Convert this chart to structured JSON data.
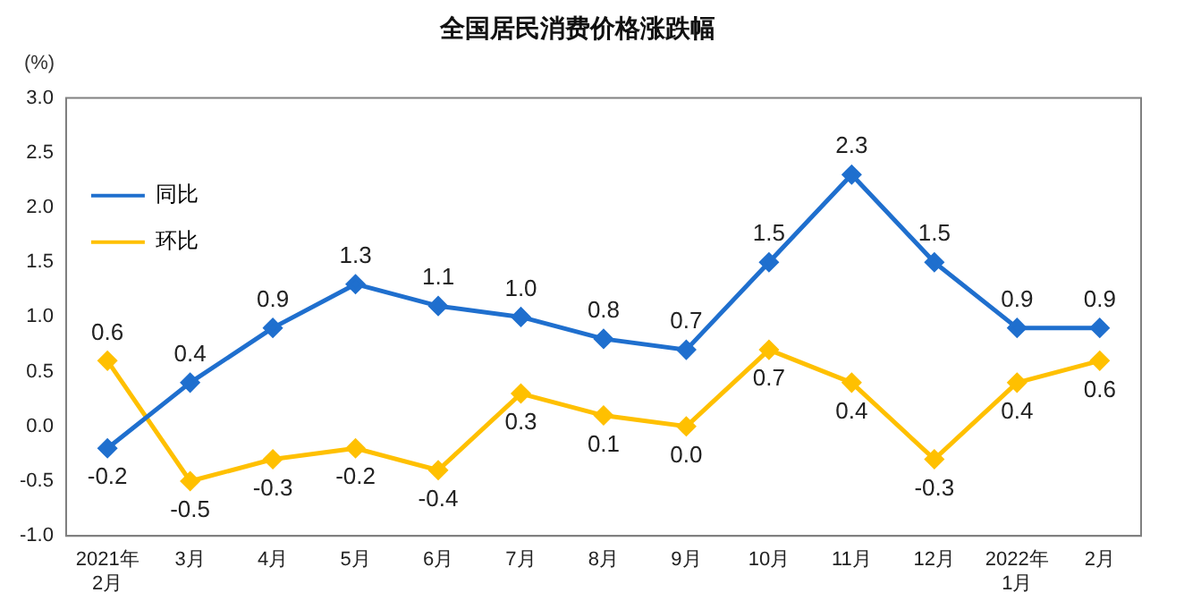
{
  "chart_data": {
    "type": "line",
    "title": "全国居民消费价格涨跌幅",
    "ylabel": "(%)",
    "categories": [
      "2021年\n2月",
      "3月",
      "4月",
      "5月",
      "6月",
      "7月",
      "8月",
      "9月",
      "10月",
      "11月",
      "12月",
      "2022年\n1月",
      "2月"
    ],
    "series": [
      {
        "name": "同比",
        "color": "#1f6fce",
        "values": [
          -0.2,
          0.4,
          0.9,
          1.3,
          1.1,
          1.0,
          0.8,
          0.7,
          1.5,
          2.3,
          1.5,
          0.9,
          0.9
        ],
        "value_labels": [
          "-0.2",
          "0.4",
          "0.9",
          "1.3",
          "1.1",
          "1.0",
          "0.8",
          "0.7",
          "1.5",
          "2.3",
          "1.5",
          "0.9",
          "0.9"
        ]
      },
      {
        "name": "环比",
        "color": "#ffc000",
        "values": [
          0.6,
          -0.5,
          -0.3,
          -0.2,
          -0.4,
          0.3,
          0.1,
          0.0,
          0.7,
          0.4,
          -0.3,
          0.4,
          0.6
        ],
        "value_labels": [
          "0.6",
          "-0.5",
          "-0.3",
          "-0.2",
          "-0.4",
          "0.3",
          "0.1",
          "0.0",
          "0.7",
          "0.4",
          "-0.3",
          "0.4",
          "0.6"
        ]
      }
    ],
    "ylim": [
      -1,
      3
    ],
    "yticks": [
      {
        "value": -1,
        "label": "-1.0"
      },
      {
        "value": -0.5,
        "label": "-0.5"
      },
      {
        "value": 0,
        "label": "0.0"
      },
      {
        "value": 0.5,
        "label": "0.5"
      },
      {
        "value": 1,
        "label": "1.0"
      },
      {
        "value": 1.5,
        "label": "1.5"
      },
      {
        "value": 2,
        "label": "2.0"
      },
      {
        "value": 2.5,
        "label": "2.5"
      },
      {
        "value": 3,
        "label": "3.0"
      }
    ],
    "grid": false,
    "legend": "top",
    "marker": "diamond",
    "line_style": "solid"
  }
}
